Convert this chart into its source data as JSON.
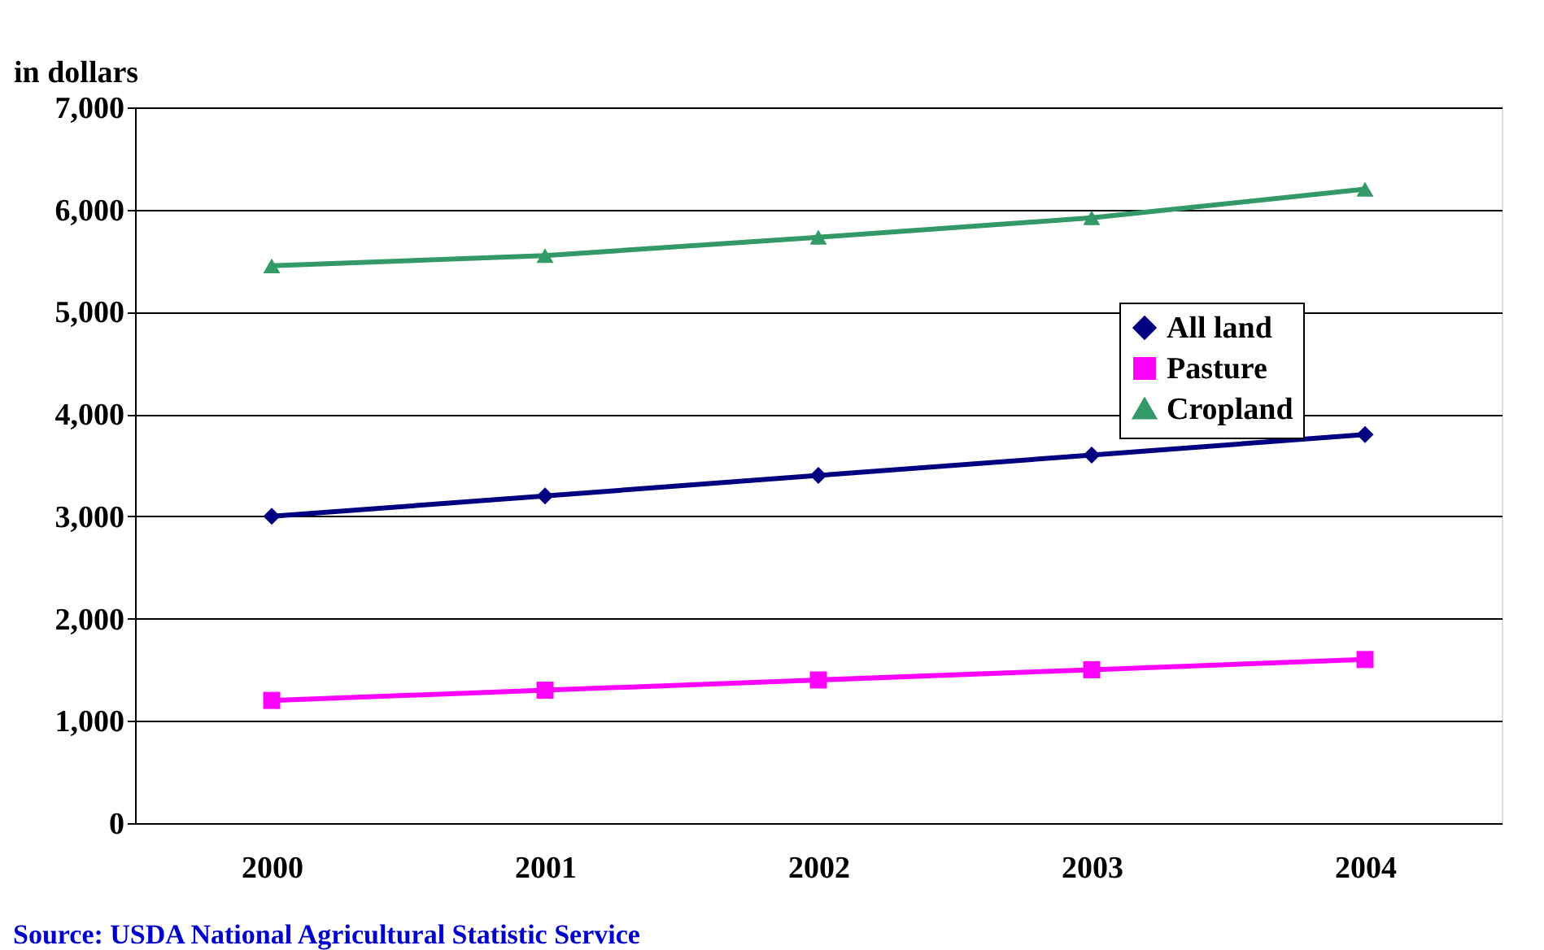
{
  "chart_data": {
    "type": "line",
    "ylabel": "in dollars",
    "categories": [
      "2000",
      "2001",
      "2002",
      "2003",
      "2004"
    ],
    "series": [
      {
        "name": "All land",
        "color": "#000080",
        "marker": "diamond",
        "values": [
          3000,
          3200,
          3400,
          3600,
          3800
        ]
      },
      {
        "name": "Pasture",
        "color": "#ff00ff",
        "marker": "square",
        "values": [
          1200,
          1300,
          1400,
          1500,
          1600
        ]
      },
      {
        "name": "Cropland",
        "color": "#339966",
        "marker": "triangle",
        "values": [
          5450,
          5550,
          5730,
          5920,
          6200
        ]
      }
    ],
    "ylim": [
      0,
      7000
    ],
    "yticks": [
      0,
      {
        "value": 1000,
        "label": "1,000"
      },
      {
        "value": 2000,
        "label": "2,000"
      },
      {
        "value": 3000,
        "label": "3,000"
      },
      {
        "value": 4000,
        "label": "4,000"
      },
      {
        "value": 5000,
        "label": "5,000"
      },
      {
        "value": 6000,
        "label": "6,000"
      },
      {
        "value": 7000,
        "label": "7,000"
      }
    ],
    "grid": "y",
    "legend": "right",
    "line_style": "solid",
    "annotations": [
      "Source: USDA National Agricultural Statistic Service"
    ]
  }
}
